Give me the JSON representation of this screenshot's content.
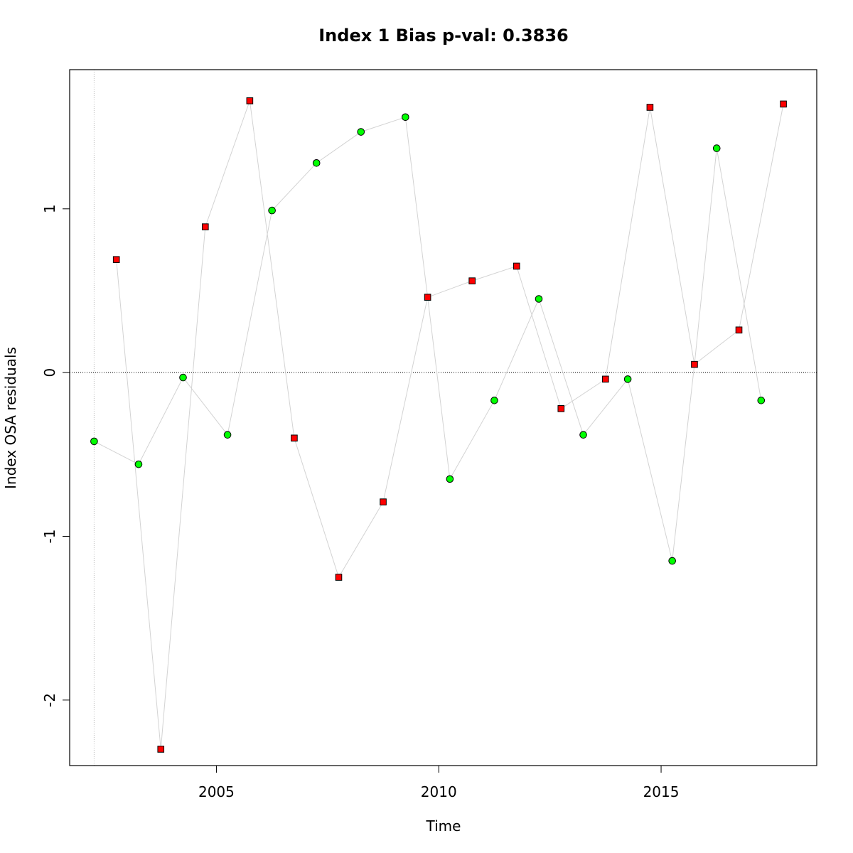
{
  "chart_data": {
    "type": "scatter",
    "title": "Index 1 Bias p-val: 0.3836",
    "title_color": "#228B22",
    "xlabel": "Time",
    "ylabel": "Index OSA residuals",
    "xlim": [
      2001.7,
      2018.5
    ],
    "ylim": [
      -2.4,
      1.85
    ],
    "xticks": [
      2005,
      2010,
      2015
    ],
    "yticks": [
      1,
      0,
      -1,
      -2
    ],
    "ytick_labels": [
      "1",
      "0",
      "-1",
      "-2"
    ],
    "grid": false,
    "legend": "none",
    "reference_hline": 0,
    "reference_vline": 2002.25,
    "line_color": "#d3d3d3",
    "marker_colors": {
      "circle": "#00ff00",
      "square": "#ff0000"
    },
    "points": [
      {
        "x": 2002.25,
        "y": -0.42,
        "marker": "circle"
      },
      {
        "x": 2002.75,
        "y": 0.69,
        "marker": "square"
      },
      {
        "x": 2003.25,
        "y": -0.56,
        "marker": "circle"
      },
      {
        "x": 2003.75,
        "y": -2.3,
        "marker": "square"
      },
      {
        "x": 2004.25,
        "y": -0.03,
        "marker": "circle"
      },
      {
        "x": 2004.75,
        "y": 0.89,
        "marker": "square"
      },
      {
        "x": 2005.25,
        "y": -0.38,
        "marker": "circle"
      },
      {
        "x": 2005.75,
        "y": 1.66,
        "marker": "square"
      },
      {
        "x": 2006.25,
        "y": 0.99,
        "marker": "circle"
      },
      {
        "x": 2006.75,
        "y": -0.4,
        "marker": "square"
      },
      {
        "x": 2007.25,
        "y": 1.28,
        "marker": "circle"
      },
      {
        "x": 2007.75,
        "y": -1.25,
        "marker": "square"
      },
      {
        "x": 2008.25,
        "y": 1.47,
        "marker": "circle"
      },
      {
        "x": 2008.75,
        "y": -0.79,
        "marker": "square"
      },
      {
        "x": 2009.25,
        "y": 1.56,
        "marker": "circle"
      },
      {
        "x": 2009.75,
        "y": 0.46,
        "marker": "square"
      },
      {
        "x": 2010.25,
        "y": -0.65,
        "marker": "circle"
      },
      {
        "x": 2010.75,
        "y": 0.56,
        "marker": "square"
      },
      {
        "x": 2011.25,
        "y": -0.17,
        "marker": "circle"
      },
      {
        "x": 2011.75,
        "y": 0.65,
        "marker": "square"
      },
      {
        "x": 2012.25,
        "y": 0.45,
        "marker": "circle"
      },
      {
        "x": 2012.75,
        "y": -0.22,
        "marker": "square"
      },
      {
        "x": 2013.25,
        "y": -0.38,
        "marker": "circle"
      },
      {
        "x": 2013.75,
        "y": -0.04,
        "marker": "square"
      },
      {
        "x": 2014.25,
        "y": -0.04,
        "marker": "circle"
      },
      {
        "x": 2014.75,
        "y": 1.62,
        "marker": "square"
      },
      {
        "x": 2015.25,
        "y": -1.15,
        "marker": "circle"
      },
      {
        "x": 2015.75,
        "y": 0.05,
        "marker": "square"
      },
      {
        "x": 2016.25,
        "y": 1.37,
        "marker": "circle"
      },
      {
        "x": 2016.75,
        "y": 0.26,
        "marker": "square"
      },
      {
        "x": 2017.25,
        "y": -0.17,
        "marker": "circle"
      },
      {
        "x": 2017.75,
        "y": 1.64,
        "marker": "square"
      }
    ],
    "connections": [
      [
        2002.25,
        -0.42,
        2003.25,
        -0.56
      ],
      [
        2003.25,
        -0.56,
        2004.25,
        -0.03
      ],
      [
        2004.25,
        -0.03,
        2005.25,
        -0.38
      ],
      [
        2005.25,
        -0.38,
        2006.25,
        0.99
      ],
      [
        2006.25,
        0.99,
        2007.25,
        1.28
      ],
      [
        2007.25,
        1.28,
        2008.25,
        1.47
      ],
      [
        2008.25,
        1.47,
        2009.25,
        1.56
      ],
      [
        2009.25,
        1.56,
        2009.75,
        0.46
      ],
      [
        2009.75,
        0.46,
        2010.75,
        0.56
      ],
      [
        2010.75,
        0.56,
        2011.75,
        0.65
      ],
      [
        2011.75,
        0.65,
        2012.75,
        -0.22
      ],
      [
        2012.75,
        -0.22,
        2013.75,
        -0.04
      ],
      [
        2013.75,
        -0.04,
        2014.75,
        1.62
      ],
      [
        2014.75,
        1.62,
        2015.75,
        0.05
      ],
      [
        2015.75,
        0.05,
        2016.75,
        0.26
      ],
      [
        2016.75,
        0.26,
        2017.75,
        1.64
      ],
      [
        2002.75,
        0.69,
        2003.75,
        -2.3
      ],
      [
        2003.75,
        -2.3,
        2004.75,
        0.89
      ],
      [
        2004.75,
        0.89,
        2005.75,
        1.66
      ],
      [
        2005.75,
        1.66,
        2006.75,
        -0.4
      ],
      [
        2006.75,
        -0.4,
        2007.75,
        -1.25
      ],
      [
        2007.75,
        -1.25,
        2008.75,
        -0.79
      ],
      [
        2008.75,
        -0.79,
        2009.75,
        0.46
      ],
      [
        2009.75,
        0.46,
        2010.25,
        -0.65
      ],
      [
        2010.25,
        -0.65,
        2011.25,
        -0.17
      ],
      [
        2011.25,
        -0.17,
        2012.25,
        0.45
      ],
      [
        2012.25,
        0.45,
        2013.25,
        -0.38
      ],
      [
        2013.25,
        -0.38,
        2014.25,
        -0.04
      ],
      [
        2014.25,
        -0.04,
        2015.25,
        -1.15
      ],
      [
        2015.25,
        -1.15,
        2015.75,
        0.05
      ],
      [
        2015.75,
        0.05,
        2016.25,
        1.37
      ],
      [
        2016.25,
        1.37,
        2017.25,
        -0.17
      ]
    ]
  }
}
